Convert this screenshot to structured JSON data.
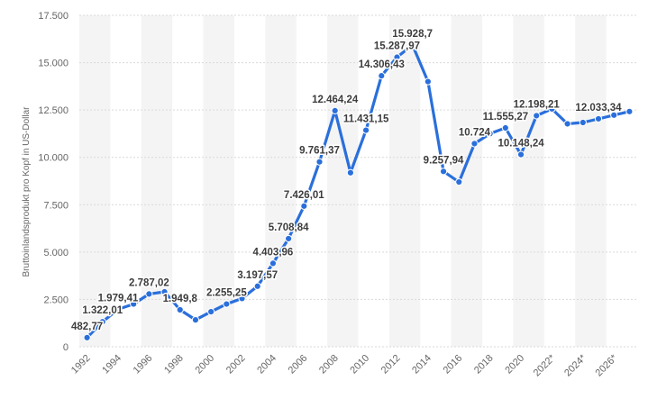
{
  "colors": {
    "series": "#2a6fdb",
    "band": "#f4f4f4",
    "grid": "#d9d9d9",
    "axis_text": "#666666",
    "label_text": "#3c3c3c"
  },
  "chart_data": {
    "type": "line",
    "ylabel": "Bruttoinlandsprodukt pro Kopf in US-Dollar",
    "ylim": [
      0,
      17500
    ],
    "y_ticks": [
      "0",
      "2.500",
      "5.000",
      "7.500",
      "10.000",
      "12.500",
      "15.000",
      "17.500"
    ],
    "y_tick_values": [
      0,
      2500,
      5000,
      7500,
      10000,
      12500,
      15000,
      17500
    ],
    "x_tick_labels": [
      "1992",
      "1994",
      "1996",
      "1998",
      "2000",
      "2002",
      "2004",
      "2006",
      "2008",
      "2010",
      "2012",
      "2014",
      "2016",
      "2018",
      "2020",
      "2022*",
      "2024*",
      "2026*"
    ],
    "grid": true,
    "x": [
      "1992",
      "1993",
      "1994",
      "1995",
      "1996",
      "1997",
      "1998",
      "1999",
      "2000",
      "2001",
      "2002",
      "2003",
      "2004",
      "2005",
      "2006",
      "2007",
      "2008",
      "2009",
      "2010",
      "2011",
      "2012",
      "2013",
      "2014",
      "2015",
      "2016",
      "2017",
      "2018",
      "2019",
      "2020",
      "2021",
      "2022*",
      "2023*",
      "2024*",
      "2025*",
      "2026*",
      "2027*"
    ],
    "values": [
      482.77,
      1322.01,
      1979.41,
      2255.25,
      2787.02,
      2900,
      1949.8,
      1420,
      1850,
      2255.25,
      2550,
      3197.57,
      4403.96,
      5708.84,
      7426.01,
      9761.37,
      12464.24,
      9190,
      11431.15,
      14306.43,
      15287.97,
      15928.7,
      14000,
      9257.94,
      8700,
      10724,
      11250,
      11555.27,
      10148.24,
      12198.21,
      12560,
      11770,
      11840,
      12033.34,
      12230,
      12420
    ],
    "data_labels": [
      {
        "i": 0,
        "text": "482,77"
      },
      {
        "i": 1,
        "text": "1.322,01"
      },
      {
        "i": 2,
        "text": "1.979,41"
      },
      {
        "i": 4,
        "text": "2.787,02"
      },
      {
        "i": 6,
        "text": "1.949,8"
      },
      {
        "i": 9,
        "text": "2.255,25"
      },
      {
        "i": 11,
        "text": "3.197,57"
      },
      {
        "i": 12,
        "text": "4.403,96"
      },
      {
        "i": 13,
        "text": "5.708,84"
      },
      {
        "i": 14,
        "text": "7.426,01"
      },
      {
        "i": 15,
        "text": "9.761,37"
      },
      {
        "i": 16,
        "text": "12.464,24"
      },
      {
        "i": 18,
        "text": "11.431,15"
      },
      {
        "i": 19,
        "text": "14.306,43"
      },
      {
        "i": 20,
        "text": "15.287,97"
      },
      {
        "i": 21,
        "text": "15.928,7"
      },
      {
        "i": 23,
        "text": "9.257,94"
      },
      {
        "i": 25,
        "text": "10.724"
      },
      {
        "i": 27,
        "text": "11.555,27"
      },
      {
        "i": 28,
        "text": "10.148,24"
      },
      {
        "i": 29,
        "text": "12.198,21"
      },
      {
        "i": 33,
        "text": "12.033,34"
      }
    ]
  }
}
